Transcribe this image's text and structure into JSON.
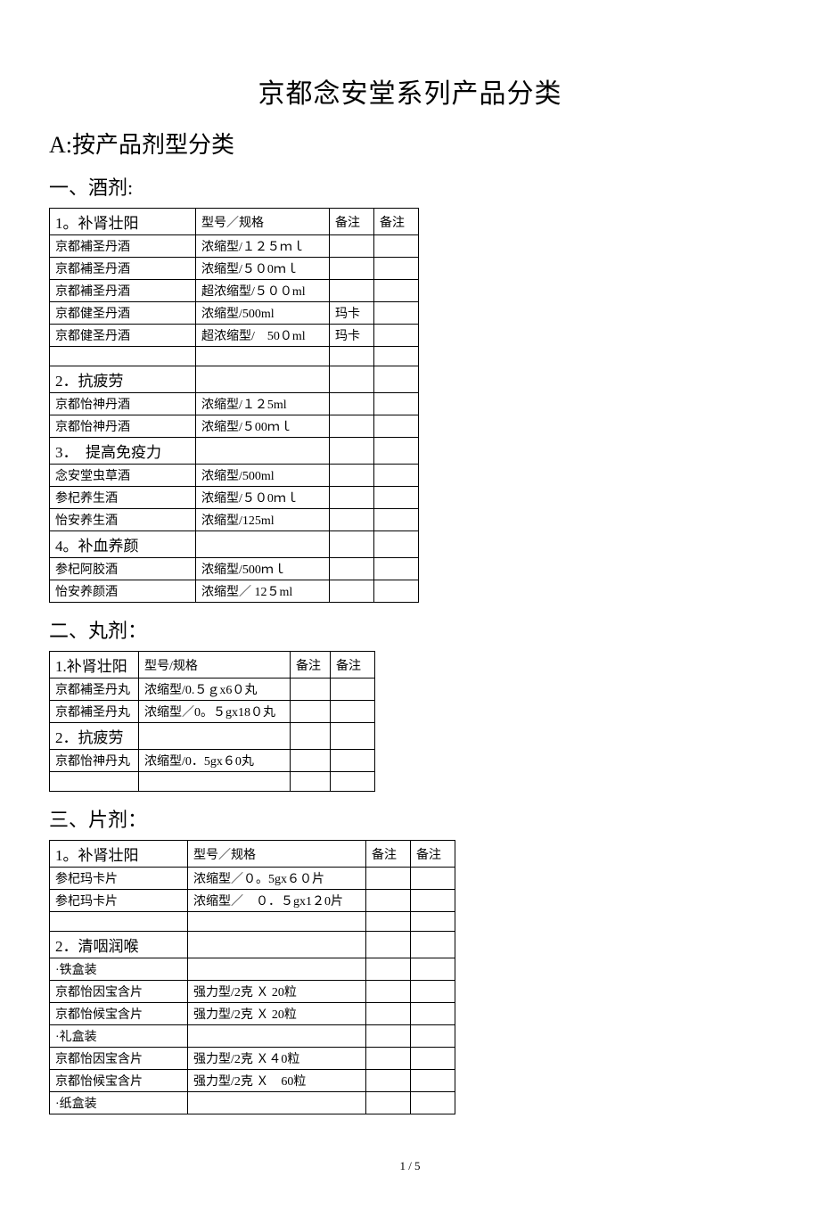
{
  "title": "京都念安堂系列产品分类",
  "sectionA": "A:按产品剂型分类",
  "sub1": "一、酒剂:",
  "sub2": "二、丸剂：",
  "sub3": "三、片剂：",
  "colSpec": "型号／规格",
  "colSpec2": "型号/规格",
  "colNote": "备注",
  "pageNum": "1 / 5",
  "t1": {
    "rows": [
      {
        "c1": "1。补肾壮阳",
        "c2": "型号／规格",
        "c3": "备注",
        "c4": "备注",
        "cat": true
      },
      {
        "c1": "京都補圣丹酒",
        "c2": "浓缩型/１２５ｍｌ",
        "c3": "",
        "c4": ""
      },
      {
        "c1": "京都補圣丹酒",
        "c2": "浓缩型/５０0ｍｌ",
        "c3": "",
        "c4": ""
      },
      {
        "c1": "京都補圣丹酒",
        "c2": "超浓缩型/５００ml",
        "c3": "",
        "c4": ""
      },
      {
        "c1": "京都健圣丹酒",
        "c2": "浓缩型/500ml",
        "c3": "玛卡",
        "c4": ""
      },
      {
        "c1": "京都健圣丹酒",
        "c2": "超浓缩型/　50０ml",
        "c3": "玛卡",
        "c4": ""
      },
      {
        "c1": "",
        "c2": "",
        "c3": "",
        "c4": ""
      },
      {
        "c1": "2．抗疲劳",
        "c2": "",
        "c3": "",
        "c4": "",
        "cat": true
      },
      {
        "c1": "京都怡神丹酒",
        "c2": "浓缩型/１２5ml",
        "c3": "",
        "c4": ""
      },
      {
        "c1": "京都怡神丹酒",
        "c2": "浓缩型/５00ｍｌ",
        "c3": "",
        "c4": ""
      },
      {
        "c1": "3．　提高免疫力",
        "c2": "",
        "c3": "",
        "c4": "",
        "cat": true
      },
      {
        "c1": "念安堂虫草酒",
        "c2": "浓缩型/500ml",
        "c3": "",
        "c4": ""
      },
      {
        "c1": "参杞养生酒",
        "c2": "浓缩型/５０0ｍｌ",
        "c3": "",
        "c4": ""
      },
      {
        "c1": "怡安养生酒",
        "c2": "浓缩型/125ml",
        "c3": "",
        "c4": ""
      },
      {
        "c1": "4。补血养颜",
        "c2": "",
        "c3": "",
        "c4": "",
        "cat": true
      },
      {
        "c1": "参杞阿胶酒",
        "c2": "浓缩型/500ｍｌ",
        "c3": "",
        "c4": ""
      },
      {
        "c1": "怡安养颜酒",
        "c2": "浓缩型／ 12５ml",
        "c3": "",
        "c4": ""
      }
    ]
  },
  "t2": {
    "rows": [
      {
        "c1": "1.补肾壮阳",
        "c2": "型号/规格",
        "c3": "备注",
        "c4": "备注",
        "cat": true
      },
      {
        "c1": "京都補圣丹丸",
        "c2": "浓缩型/0.５ｇx6０丸",
        "c3": "",
        "c4": ""
      },
      {
        "c1": "京都補圣丹丸",
        "c2": "浓缩型／0。５gx18０丸",
        "c3": "",
        "c4": ""
      },
      {
        "c1": "2．抗疲劳",
        "c2": "",
        "c3": "",
        "c4": "",
        "cat": true
      },
      {
        "c1": "京都怡神丹丸",
        "c2": "浓缩型/0．5gx６0丸",
        "c3": "",
        "c4": ""
      },
      {
        "c1": "",
        "c2": "",
        "c3": "",
        "c4": ""
      }
    ]
  },
  "t3": {
    "rows": [
      {
        "c1": "1。补肾壮阳",
        "c2": "型号／规格",
        "c3": "备注",
        "c4": "备注",
        "cat": true
      },
      {
        "c1": "参杞玛卡片",
        "c2": "浓缩型／０。5gx６０片",
        "c3": "",
        "c4": ""
      },
      {
        "c1": "参杞玛卡片",
        "c2": "浓缩型／　０．５gx1２0片",
        "c3": "",
        "c4": ""
      },
      {
        "c1": "",
        "c2": "",
        "c3": "",
        "c4": ""
      },
      {
        "c1": "2．清咽润喉",
        "c2": "",
        "c3": "",
        "c4": "",
        "cat": true
      },
      {
        "c1": "·铁盒装",
        "c2": "",
        "c3": "",
        "c4": ""
      },
      {
        "c1": "京都怡因宝含片",
        "c2": "强力型/2克 Ｘ 20粒",
        "c3": "",
        "c4": ""
      },
      {
        "c1": "京都怡候宝含片",
        "c2": "强力型/2克 Ｘ 20粒",
        "c3": "",
        "c4": ""
      },
      {
        "c1": "·礼盒装",
        "c2": "",
        "c3": "",
        "c4": ""
      },
      {
        "c1": "京都怡因宝含片",
        "c2": "强力型/2克 Ｘ４0粒",
        "c3": "",
        "c4": ""
      },
      {
        "c1": "京都怡候宝含片",
        "c2": "强力型/2克 Ｘ　60粒",
        "c3": "",
        "c4": ""
      },
      {
        "c1": "·纸盒装",
        "c2": "",
        "c3": "",
        "c4": ""
      }
    ]
  }
}
